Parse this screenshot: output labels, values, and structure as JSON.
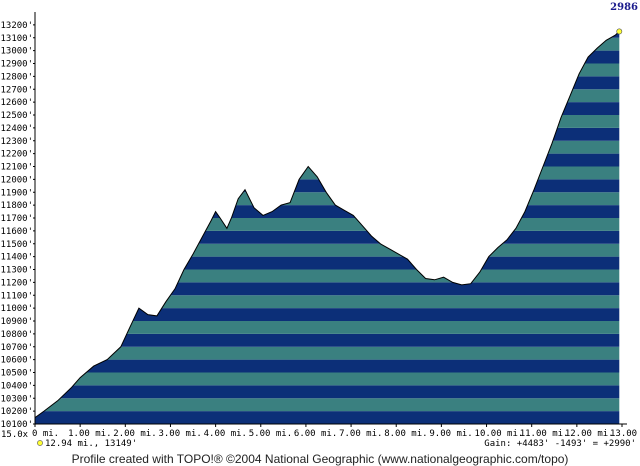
{
  "chart_data": {
    "type": "area",
    "top_right_value": "2986",
    "yunit_label": "10100'",
    "xunit_label": "15.0x",
    "ylim": [
      10100,
      13300
    ],
    "xlim": [
      0,
      13
    ],
    "yticks": [
      "10100'",
      "10200'",
      "10300'",
      "10400'",
      "10500'",
      "10600'",
      "10700'",
      "10800'",
      "10900'",
      "11000'",
      "11100'",
      "11200'",
      "11300'",
      "11400'",
      "11500'",
      "11600'",
      "11700'",
      "11800'",
      "11900'",
      "12000'",
      "12100'",
      "12200'",
      "12300'",
      "12400'",
      "12500'",
      "12600'",
      "12700'",
      "12800'",
      "12900'",
      "13000'",
      "13100'",
      "13200'"
    ],
    "xticks": [
      "0 mi.",
      "1.00 mi.",
      "2.00 mi.",
      "3.00 mi.",
      "4.00 mi.",
      "5.00 mi.",
      "6.00 mi.",
      "7.00 mi.",
      "8.00 mi.",
      "9.00 mi.",
      "10.00 mi.",
      "11.00 mi.",
      "12.00 mi.",
      "13.00 mi."
    ],
    "x": [
      0,
      0.2,
      0.5,
      0.8,
      1.0,
      1.3,
      1.6,
      1.9,
      2.1,
      2.3,
      2.5,
      2.7,
      2.9,
      3.1,
      3.3,
      3.5,
      3.7,
      3.9,
      4.0,
      4.1,
      4.25,
      4.35,
      4.5,
      4.65,
      4.85,
      5.05,
      5.25,
      5.45,
      5.65,
      5.85,
      6.05,
      6.25,
      6.45,
      6.65,
      6.85,
      7.05,
      7.25,
      7.45,
      7.65,
      7.85,
      8.05,
      8.25,
      8.45,
      8.65,
      8.85,
      9.05,
      9.25,
      9.45,
      9.65,
      9.85,
      10.05,
      10.25,
      10.45,
      10.65,
      10.85,
      11.05,
      11.25,
      11.45,
      11.65,
      11.85,
      12.05,
      12.25,
      12.45,
      12.65,
      12.85,
      12.94
    ],
    "y": [
      10150,
      10200,
      10280,
      10380,
      10460,
      10550,
      10600,
      10700,
      10850,
      11000,
      10950,
      10940,
      11050,
      11150,
      11300,
      11420,
      11550,
      11680,
      11750,
      11700,
      11620,
      11700,
      11850,
      11920,
      11780,
      11720,
      11750,
      11800,
      11820,
      12000,
      12100,
      12020,
      11900,
      11800,
      11760,
      11720,
      11640,
      11560,
      11500,
      11460,
      11420,
      11380,
      11300,
      11230,
      11220,
      11240,
      11200,
      11180,
      11190,
      11280,
      11400,
      11470,
      11530,
      11620,
      11750,
      11920,
      12100,
      12280,
      12480,
      12650,
      12820,
      12950,
      13020,
      13080,
      13120,
      13149
    ],
    "colors": {
      "band_light": "#3a8080",
      "band_dark": "#0c2f78",
      "outline": "#000000",
      "endpoint": "#ffff33"
    }
  },
  "status": {
    "cursor": "12.94 mi., 13149'",
    "gain": "Gain: +4483' -1493' = +2990'"
  },
  "footer": {
    "credit": "Profile created with TOPO!® ©2004 National Geographic (www.nationalgeographic.com/topo)"
  }
}
